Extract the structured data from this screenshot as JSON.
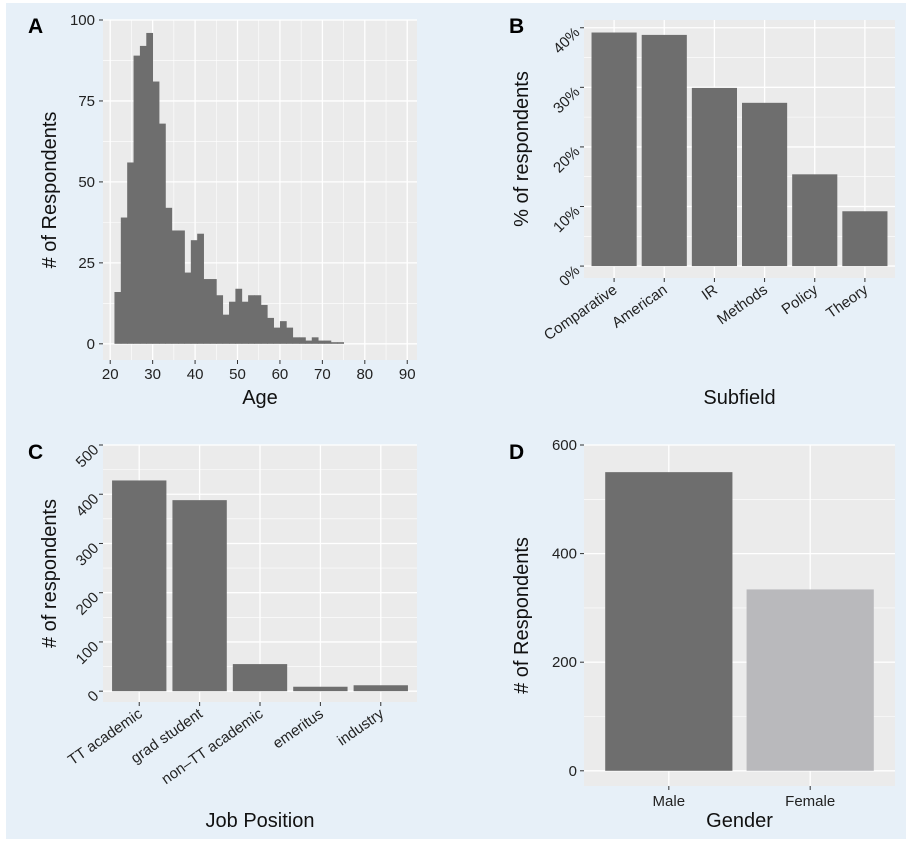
{
  "colors": {
    "figure_bg": "#e7f0f8",
    "panel_bg": "#ebebeb",
    "grid": "#ffffff",
    "bar": "#6e6e6e",
    "bar_light": "#b9b9bc"
  },
  "chart_data": [
    {
      "panel": "A",
      "type": "bar",
      "xlabel": "Age",
      "ylabel": "# of Respondents",
      "x_ticks": [
        20,
        30,
        40,
        50,
        60,
        70,
        80,
        90
      ],
      "y_ticks": [
        0,
        25,
        50,
        75,
        100
      ],
      "xlim": [
        18.3,
        92.3
      ],
      "ylim": [
        -5,
        100
      ],
      "bin_width": 1.5,
      "bins": [
        {
          "start": 21.0,
          "count": 16
        },
        {
          "start": 22.5,
          "count": 39
        },
        {
          "start": 24.0,
          "count": 56
        },
        {
          "start": 25.5,
          "count": 89
        },
        {
          "start": 27.0,
          "count": 92
        },
        {
          "start": 28.5,
          "count": 96
        },
        {
          "start": 30.0,
          "count": 81
        },
        {
          "start": 31.5,
          "count": 68
        },
        {
          "start": 33.0,
          "count": 42
        },
        {
          "start": 34.5,
          "count": 35
        },
        {
          "start": 36.0,
          "count": 35
        },
        {
          "start": 37.5,
          "count": 22
        },
        {
          "start": 39.0,
          "count": 32
        },
        {
          "start": 40.5,
          "count": 34
        },
        {
          "start": 42.0,
          "count": 20
        },
        {
          "start": 43.5,
          "count": 20
        },
        {
          "start": 45.0,
          "count": 15
        },
        {
          "start": 46.5,
          "count": 9
        },
        {
          "start": 48.0,
          "count": 13
        },
        {
          "start": 49.5,
          "count": 17
        },
        {
          "start": 51.0,
          "count": 13
        },
        {
          "start": 52.5,
          "count": 15
        },
        {
          "start": 54.0,
          "count": 15
        },
        {
          "start": 55.5,
          "count": 12
        },
        {
          "start": 57.0,
          "count": 8
        },
        {
          "start": 58.5,
          "count": 5
        },
        {
          "start": 60.0,
          "count": 7
        },
        {
          "start": 61.5,
          "count": 5
        },
        {
          "start": 63.0,
          "count": 2
        },
        {
          "start": 64.5,
          "count": 2
        },
        {
          "start": 66.0,
          "count": 1
        },
        {
          "start": 67.5,
          "count": 2
        },
        {
          "start": 69.0,
          "count": 1
        },
        {
          "start": 70.5,
          "count": 1
        },
        {
          "start": 72.0,
          "count": 0.5
        },
        {
          "start": 73.5,
          "count": 0.5
        }
      ]
    },
    {
      "panel": "B",
      "type": "bar",
      "xlabel": "Subfield",
      "ylabel": "% of respondents",
      "categories": [
        "Comparative",
        "American",
        "IR",
        "Methods",
        "Policy",
        "Theory"
      ],
      "values": [
        39.2,
        38.8,
        29.9,
        27.4,
        15.4,
        9.2
      ],
      "y_ticks": [
        0,
        10,
        20,
        30,
        40
      ],
      "y_tick_labels": [
        "0%",
        "10%",
        "20%",
        "30%",
        "40%"
      ],
      "ylim": [
        -2,
        41.3
      ]
    },
    {
      "panel": "C",
      "type": "bar",
      "xlabel": "Job Position",
      "ylabel": "# of respondents",
      "categories": [
        "TT academic",
        "grad student",
        "non–TT academic",
        "emeritus",
        "industry"
      ],
      "values": [
        428,
        388,
        55,
        9,
        12
      ],
      "y_ticks": [
        0,
        100,
        200,
        300,
        400,
        500
      ],
      "ylim": [
        -22,
        500
      ]
    },
    {
      "panel": "D",
      "type": "bar",
      "xlabel": "Gender",
      "ylabel": "# of Respondents",
      "categories": [
        "Male",
        "Female"
      ],
      "values": [
        550,
        334
      ],
      "y_ticks": [
        0,
        200,
        400,
        600
      ],
      "ylim": [
        -28,
        600
      ]
    }
  ]
}
